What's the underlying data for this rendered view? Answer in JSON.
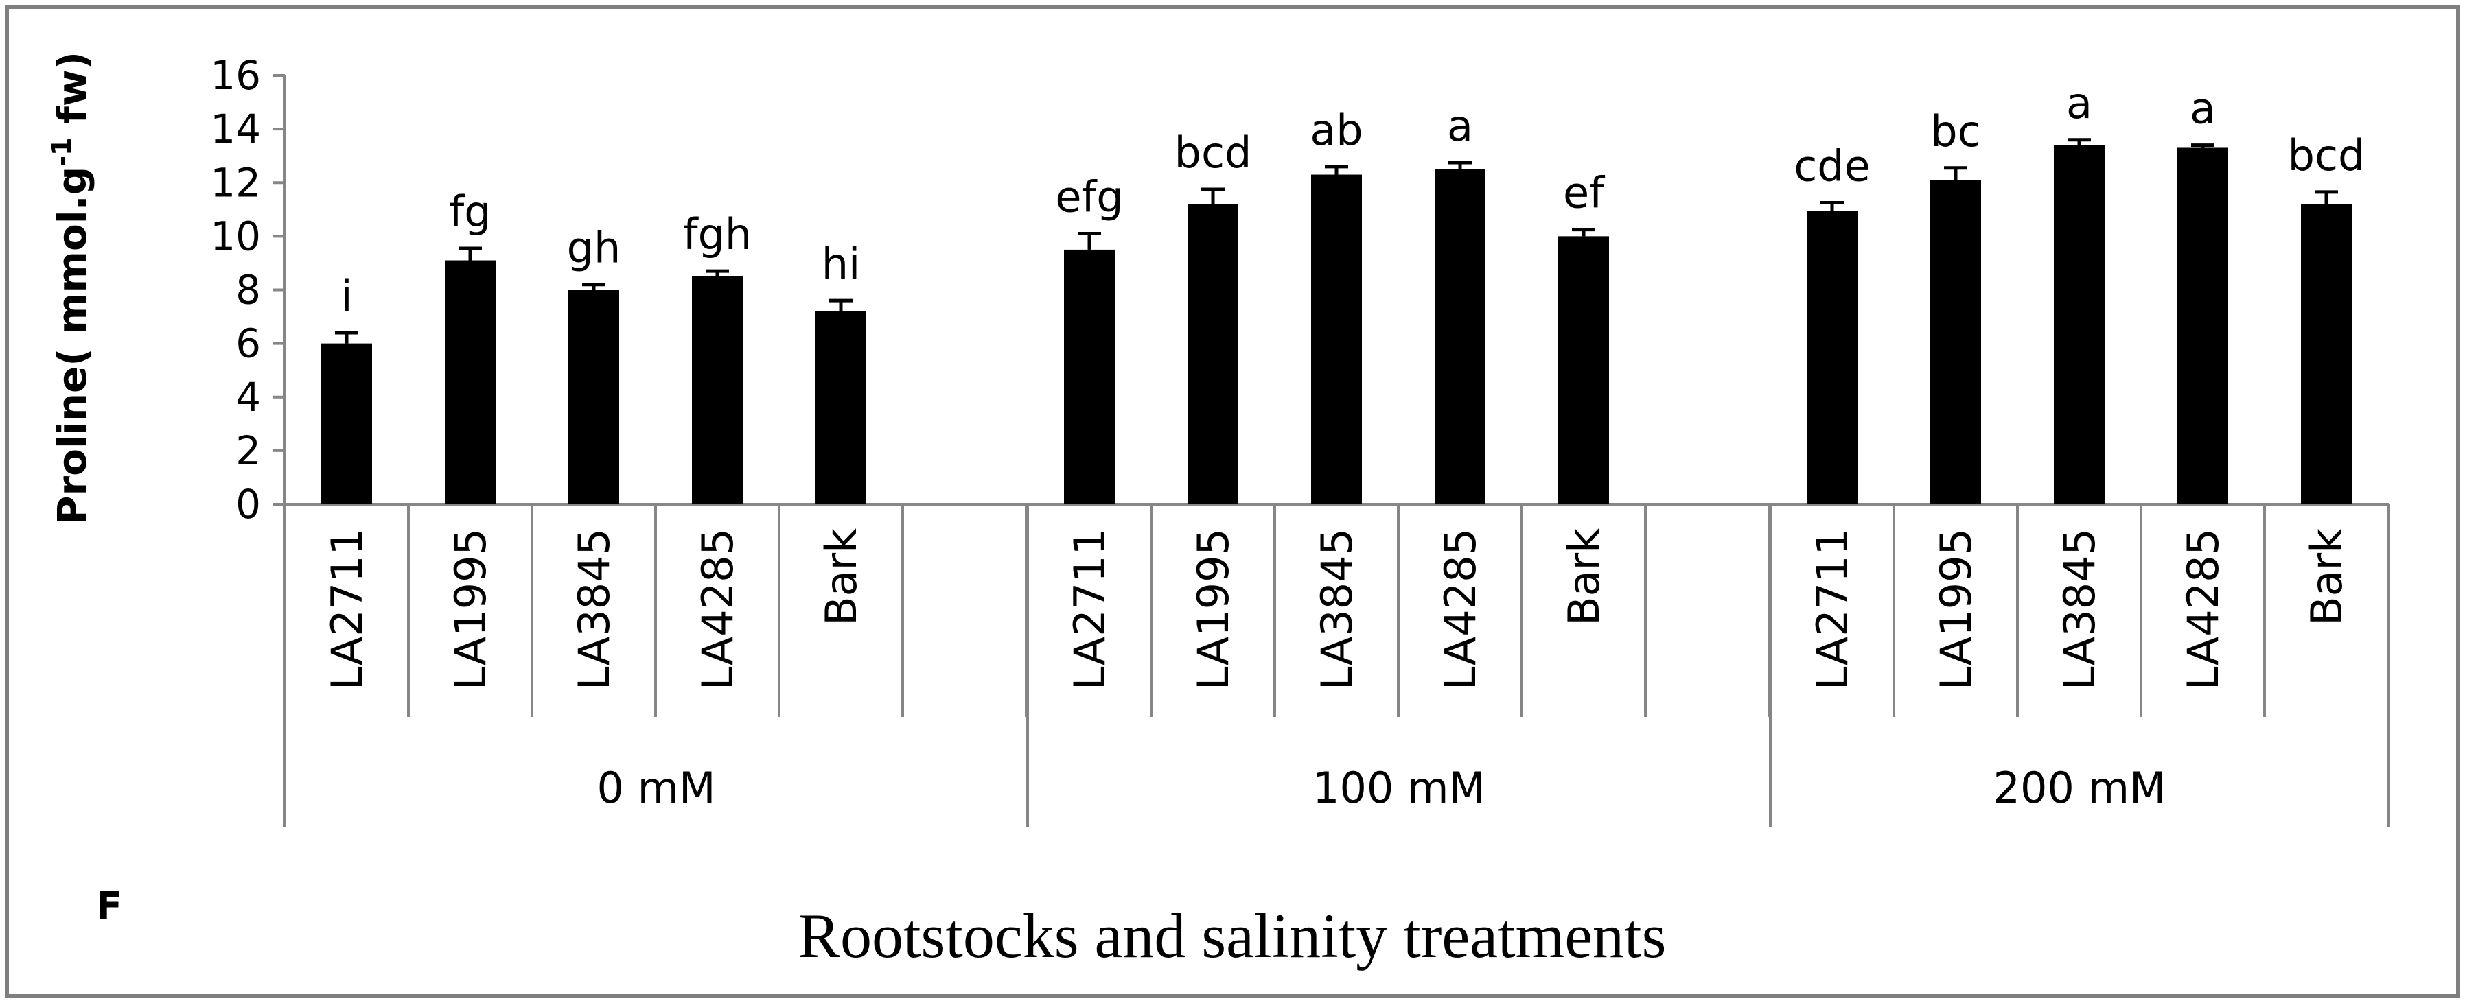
{
  "chart_data": {
    "type": "bar",
    "panel_label": "F",
    "ylabel": "Proline( mmol.g-1 fw)",
    "ylabel_parts": {
      "pre": "Proline( mmol.g",
      "sup": "-1",
      "post": " fw)"
    },
    "xlabel": "Rootstocks and salinity treatments",
    "ylim": [
      0,
      16
    ],
    "yticks": [
      0,
      2,
      4,
      6,
      8,
      10,
      12,
      14,
      16
    ],
    "yticks_text": [
      "0",
      "2",
      "4",
      "6",
      "8",
      "10",
      "12",
      "14",
      "16"
    ],
    "groups": [
      {
        "name": "0 mM",
        "bars": [
          {
            "category": "LA2711",
            "value": 6.0,
            "error": 0.4,
            "letter": "i"
          },
          {
            "category": "LA1995",
            "value": 9.1,
            "error": 0.45,
            "letter": "fg"
          },
          {
            "category": "LA3845",
            "value": 8.0,
            "error": 0.2,
            "letter": "gh"
          },
          {
            "category": "LA4285",
            "value": 8.5,
            "error": 0.2,
            "letter": "fgh"
          },
          {
            "category": "Bark",
            "value": 7.2,
            "error": 0.4,
            "letter": "hi"
          }
        ]
      },
      {
        "name": "100 mM",
        "bars": [
          {
            "category": "LA2711",
            "value": 9.5,
            "error": 0.6,
            "letter": "efg"
          },
          {
            "category": "LA1995",
            "value": 11.2,
            "error": 0.55,
            "letter": "bcd"
          },
          {
            "category": "LA3845",
            "value": 12.3,
            "error": 0.3,
            "letter": "ab"
          },
          {
            "category": "LA4285",
            "value": 12.5,
            "error": 0.25,
            "letter": "a"
          },
          {
            "category": "Bark",
            "value": 10.0,
            "error": 0.25,
            "letter": "ef"
          }
        ]
      },
      {
        "name": "200 mM",
        "bars": [
          {
            "category": "LA2711",
            "value": 10.95,
            "error": 0.3,
            "letter": "cde"
          },
          {
            "category": "LA1995",
            "value": 12.1,
            "error": 0.45,
            "letter": "bc"
          },
          {
            "category": "LA3845",
            "value": 13.4,
            "error": 0.2,
            "letter": "a"
          },
          {
            "category": "LA4285",
            "value": 13.3,
            "error": 0.1,
            "letter": "a"
          },
          {
            "category": "Bark",
            "value": 11.2,
            "error": 0.45,
            "letter": "bcd"
          }
        ]
      }
    ]
  },
  "colors": {
    "bar": "#000000",
    "axis": "#868686",
    "frame": "#7f7f7f"
  }
}
